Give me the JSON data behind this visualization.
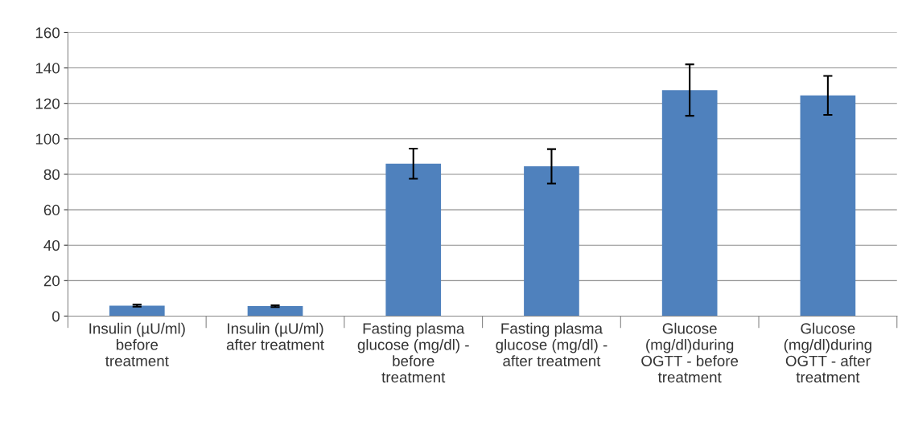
{
  "chart_data": {
    "type": "bar",
    "categories": [
      "Insulin (µU/ml)\nbefore\ntreatment",
      "Insulin (µU/ml)\nafter treatment",
      "Fasting plasma\nglucose (mg/dl) -\nbefore\ntreatment",
      "Fasting plasma\nglucose (mg/dl) -\nafter treatment",
      "Glucose\n(mg/dl)during\nOGTT - before\ntreatment",
      "Glucose\n(mg/dl)during\nOGTT - after\ntreatment"
    ],
    "values": [
      5.9,
      5.6,
      86,
      84.5,
      127.5,
      124.5
    ],
    "errors": [
      0.6,
      0.5,
      8.5,
      9.7,
      14.5,
      11
    ],
    "color": "#4f81bd",
    "ylim": [
      0,
      160
    ],
    "yticks": [
      0,
      20,
      40,
      60,
      80,
      100,
      120,
      140,
      160
    ],
    "grid": "y",
    "legend": false
  }
}
